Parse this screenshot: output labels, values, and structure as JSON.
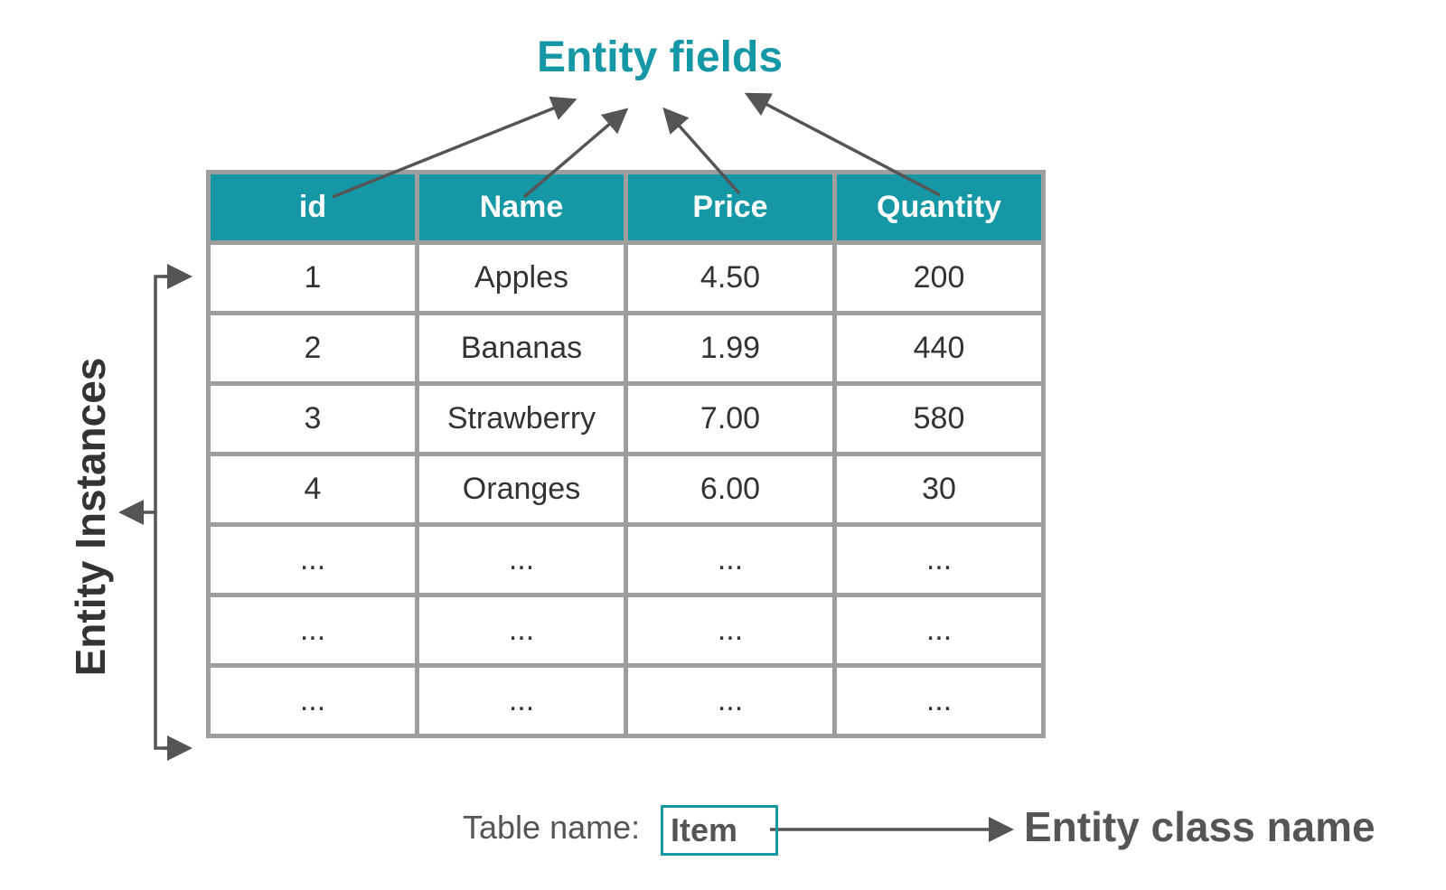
{
  "title": "Entity fields",
  "side_label": "Entity Instances",
  "table": {
    "headers": [
      "id",
      "Name",
      "Price",
      "Quantity"
    ],
    "rows": [
      [
        "1",
        "Apples",
        "4.50",
        "200"
      ],
      [
        "2",
        "Bananas",
        "1.99",
        "440"
      ],
      [
        "3",
        "Strawberry",
        "7.00",
        "580"
      ],
      [
        "4",
        "Oranges",
        "6.00",
        "30"
      ],
      [
        "...",
        "...",
        "...",
        "..."
      ],
      [
        "...",
        "...",
        "...",
        "..."
      ],
      [
        "...",
        "...",
        "...",
        "..."
      ]
    ]
  },
  "table_name_label": "Table name:",
  "table_name_value": "Item",
  "class_label": "Entity class name",
  "colors": {
    "accent": "#1597a6",
    "border": "#9e9e9e",
    "arrow": "#555555"
  }
}
